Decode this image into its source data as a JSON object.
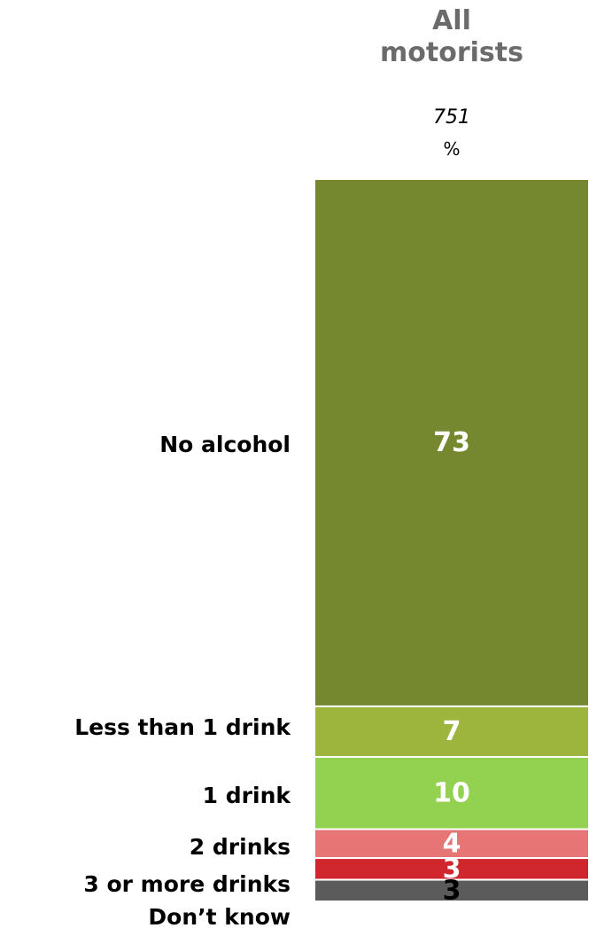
{
  "header": {
    "title_line1": "All",
    "title_line2": "motorists",
    "base": "751",
    "unit": "%"
  },
  "chart_data": {
    "type": "bar",
    "stacked": true,
    "orientation": "vertical",
    "categories": [
      "All motorists"
    ],
    "series": [
      {
        "name": "No alcohol",
        "values": [
          73
        ],
        "color": "#76882f",
        "label_color": "#ffffff"
      },
      {
        "name": "Less than 1 drink",
        "values": [
          7
        ],
        "color": "#9db43d",
        "label_color": "#ffffff"
      },
      {
        "name": "1 drink",
        "values": [
          10
        ],
        "color": "#93d150",
        "label_color": "#ffffff"
      },
      {
        "name": "2 drinks",
        "values": [
          4
        ],
        "color": "#e77575",
        "label_color": "#ffffff"
      },
      {
        "name": "3 or more drinks",
        "values": [
          3
        ],
        "color": "#d0262d",
        "label_color": "#ffffff"
      },
      {
        "name": "Don’t know",
        "values": [
          3
        ],
        "color": "#5b5b5b",
        "label_color": "#000000"
      }
    ],
    "title": "All motorists",
    "xlabel": "",
    "ylabel": "",
    "ylim": [
      0,
      100
    ],
    "grid": false,
    "legend": "left"
  }
}
